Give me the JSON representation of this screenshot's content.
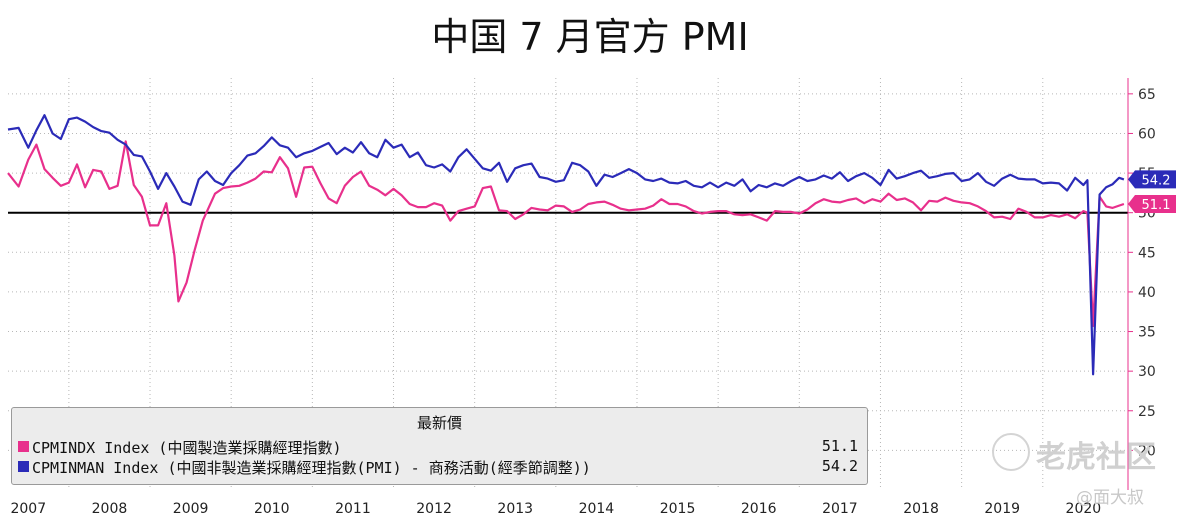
{
  "title": "中国 7 月官方 PMI",
  "watermark": {
    "brand": "老虎社区",
    "handle": "@面大叔"
  },
  "legend": {
    "header": "最新價",
    "items": [
      {
        "label": "CPMINDX Index (中國製造業採購經理指數)",
        "value": "51.1",
        "color": "#e8308c"
      },
      {
        "label": "CPMINMAN Index (中國非製造業採購經理指數(PMI) - 商務活動(經季節調整))",
        "value": "54.2",
        "color": "#2b2bb8"
      }
    ]
  },
  "chart_data": {
    "type": "line",
    "title": "中国 7 月官方 PMI",
    "xlabel": "",
    "ylabel": "",
    "x_range": [
      2006.75,
      2020.55
    ],
    "ylim": [
      15,
      67
    ],
    "y_ticks": [
      20,
      25,
      30,
      35,
      40,
      45,
      50,
      55,
      60,
      65
    ],
    "x_ticks": [
      "2007",
      "2008",
      "2009",
      "2010",
      "2011",
      "2012",
      "2013",
      "2014",
      "2015",
      "2016",
      "2017",
      "2018",
      "2019",
      "2020"
    ],
    "reference_line": 50,
    "grid": true,
    "series": [
      {
        "name": "CPMINMAN Index",
        "color": "#2b2bb8",
        "last_value": "54.2",
        "points": [
          [
            2006.75,
            60.5
          ],
          [
            2006.88,
            60.7
          ],
          [
            2007.0,
            58.2
          ],
          [
            2007.1,
            60.4
          ],
          [
            2007.2,
            62.3
          ],
          [
            2007.3,
            60.0
          ],
          [
            2007.4,
            59.3
          ],
          [
            2007.5,
            61.8
          ],
          [
            2007.6,
            62.0
          ],
          [
            2007.7,
            61.5
          ],
          [
            2007.8,
            60.8
          ],
          [
            2007.9,
            60.3
          ],
          [
            2008.0,
            60.1
          ],
          [
            2008.1,
            59.2
          ],
          [
            2008.2,
            58.6
          ],
          [
            2008.3,
            57.3
          ],
          [
            2008.4,
            57.1
          ],
          [
            2008.5,
            55.2
          ],
          [
            2008.6,
            53.0
          ],
          [
            2008.7,
            55.0
          ],
          [
            2008.8,
            53.3
          ],
          [
            2008.9,
            51.4
          ],
          [
            2009.0,
            51.0
          ],
          [
            2009.1,
            54.2
          ],
          [
            2009.2,
            55.2
          ],
          [
            2009.3,
            54.0
          ],
          [
            2009.4,
            53.5
          ],
          [
            2009.5,
            55.0
          ],
          [
            2009.6,
            56.0
          ],
          [
            2009.7,
            57.2
          ],
          [
            2009.8,
            57.5
          ],
          [
            2009.9,
            58.4
          ],
          [
            2010.0,
            59.5
          ],
          [
            2010.1,
            58.5
          ],
          [
            2010.2,
            58.2
          ],
          [
            2010.3,
            57.0
          ],
          [
            2010.4,
            57.5
          ],
          [
            2010.5,
            57.8
          ],
          [
            2010.6,
            58.3
          ],
          [
            2010.7,
            58.8
          ],
          [
            2010.8,
            57.4
          ],
          [
            2010.9,
            58.2
          ],
          [
            2011.0,
            57.6
          ],
          [
            2011.1,
            58.9
          ],
          [
            2011.2,
            57.5
          ],
          [
            2011.3,
            57.0
          ],
          [
            2011.4,
            59.2
          ],
          [
            2011.5,
            58.2
          ],
          [
            2011.6,
            58.6
          ],
          [
            2011.7,
            57.0
          ],
          [
            2011.8,
            57.6
          ],
          [
            2011.9,
            56.0
          ],
          [
            2012.0,
            55.7
          ],
          [
            2012.1,
            56.1
          ],
          [
            2012.2,
            55.2
          ],
          [
            2012.3,
            57.0
          ],
          [
            2012.4,
            58.0
          ],
          [
            2012.5,
            56.8
          ],
          [
            2012.6,
            55.6
          ],
          [
            2012.7,
            55.3
          ],
          [
            2012.8,
            56.3
          ],
          [
            2012.9,
            53.9
          ],
          [
            2013.0,
            55.6
          ],
          [
            2013.1,
            56.0
          ],
          [
            2013.2,
            56.2
          ],
          [
            2013.3,
            54.5
          ],
          [
            2013.4,
            54.3
          ],
          [
            2013.5,
            53.9
          ],
          [
            2013.6,
            54.1
          ],
          [
            2013.7,
            56.3
          ],
          [
            2013.8,
            56.0
          ],
          [
            2013.9,
            55.2
          ],
          [
            2014.0,
            53.4
          ],
          [
            2014.1,
            54.8
          ],
          [
            2014.2,
            54.5
          ],
          [
            2014.3,
            55.0
          ],
          [
            2014.4,
            55.5
          ],
          [
            2014.5,
            55.0
          ],
          [
            2014.6,
            54.2
          ],
          [
            2014.7,
            54.0
          ],
          [
            2014.8,
            54.3
          ],
          [
            2014.9,
            53.8
          ],
          [
            2015.0,
            53.7
          ],
          [
            2015.1,
            54.0
          ],
          [
            2015.2,
            53.4
          ],
          [
            2015.3,
            53.2
          ],
          [
            2015.4,
            53.8
          ],
          [
            2015.5,
            53.2
          ],
          [
            2015.6,
            53.8
          ],
          [
            2015.7,
            53.4
          ],
          [
            2015.8,
            54.2
          ],
          [
            2015.9,
            52.7
          ],
          [
            2016.0,
            53.5
          ],
          [
            2016.1,
            53.2
          ],
          [
            2016.2,
            53.7
          ],
          [
            2016.3,
            53.4
          ],
          [
            2016.4,
            54.0
          ],
          [
            2016.5,
            54.5
          ],
          [
            2016.6,
            54.0
          ],
          [
            2016.7,
            54.2
          ],
          [
            2016.8,
            54.7
          ],
          [
            2016.9,
            54.3
          ],
          [
            2017.0,
            55.1
          ],
          [
            2017.1,
            54.0
          ],
          [
            2017.2,
            54.6
          ],
          [
            2017.3,
            55.0
          ],
          [
            2017.4,
            54.4
          ],
          [
            2017.5,
            53.5
          ],
          [
            2017.6,
            55.4
          ],
          [
            2017.7,
            54.3
          ],
          [
            2017.8,
            54.6
          ],
          [
            2017.9,
            55.0
          ],
          [
            2018.0,
            55.3
          ],
          [
            2018.1,
            54.4
          ],
          [
            2018.2,
            54.6
          ],
          [
            2018.3,
            54.9
          ],
          [
            2018.4,
            55.0
          ],
          [
            2018.5,
            54.0
          ],
          [
            2018.6,
            54.2
          ],
          [
            2018.7,
            55.0
          ],
          [
            2018.8,
            53.9
          ],
          [
            2018.9,
            53.4
          ],
          [
            2019.0,
            54.3
          ],
          [
            2019.1,
            54.8
          ],
          [
            2019.2,
            54.3
          ],
          [
            2019.3,
            54.2
          ],
          [
            2019.4,
            54.2
          ],
          [
            2019.5,
            53.7
          ],
          [
            2019.6,
            53.8
          ],
          [
            2019.7,
            53.7
          ],
          [
            2019.8,
            52.8
          ],
          [
            2019.9,
            54.4
          ],
          [
            2020.0,
            53.5
          ],
          [
            2020.05,
            54.1
          ],
          [
            2020.12,
            29.6
          ],
          [
            2020.2,
            52.3
          ],
          [
            2020.28,
            53.2
          ],
          [
            2020.36,
            53.6
          ],
          [
            2020.44,
            54.4
          ],
          [
            2020.5,
            54.2
          ]
        ]
      },
      {
        "name": "CPMINDX Index",
        "color": "#e8308c",
        "last_value": "51.1",
        "points": [
          [
            2006.75,
            55.0
          ],
          [
            2006.88,
            53.3
          ],
          [
            2007.0,
            56.7
          ],
          [
            2007.1,
            58.6
          ],
          [
            2007.2,
            55.5
          ],
          [
            2007.3,
            54.4
          ],
          [
            2007.4,
            53.4
          ],
          [
            2007.5,
            53.8
          ],
          [
            2007.6,
            56.1
          ],
          [
            2007.7,
            53.2
          ],
          [
            2007.8,
            55.4
          ],
          [
            2007.9,
            55.2
          ],
          [
            2008.0,
            53.0
          ],
          [
            2008.1,
            53.4
          ],
          [
            2008.2,
            59.0
          ],
          [
            2008.3,
            53.5
          ],
          [
            2008.4,
            52.0
          ],
          [
            2008.5,
            48.4
          ],
          [
            2008.6,
            48.4
          ],
          [
            2008.7,
            51.2
          ],
          [
            2008.8,
            44.6
          ],
          [
            2008.85,
            38.8
          ],
          [
            2008.95,
            41.2
          ],
          [
            2009.05,
            45.3
          ],
          [
            2009.15,
            49.0
          ],
          [
            2009.3,
            52.4
          ],
          [
            2009.4,
            53.1
          ],
          [
            2009.5,
            53.3
          ],
          [
            2009.6,
            53.4
          ],
          [
            2009.7,
            53.8
          ],
          [
            2009.8,
            54.3
          ],
          [
            2009.9,
            55.2
          ],
          [
            2010.0,
            55.1
          ],
          [
            2010.1,
            57.0
          ],
          [
            2010.2,
            55.6
          ],
          [
            2010.3,
            52.0
          ],
          [
            2010.4,
            55.7
          ],
          [
            2010.5,
            55.8
          ],
          [
            2010.6,
            53.7
          ],
          [
            2010.7,
            51.8
          ],
          [
            2010.8,
            51.2
          ],
          [
            2010.9,
            53.4
          ],
          [
            2011.0,
            54.5
          ],
          [
            2011.1,
            55.2
          ],
          [
            2011.2,
            53.4
          ],
          [
            2011.3,
            52.9
          ],
          [
            2011.4,
            52.2
          ],
          [
            2011.5,
            53.0
          ],
          [
            2011.6,
            52.2
          ],
          [
            2011.7,
            51.1
          ],
          [
            2011.8,
            50.7
          ],
          [
            2011.9,
            50.7
          ],
          [
            2012.0,
            51.2
          ],
          [
            2012.1,
            50.9
          ],
          [
            2012.2,
            49.0
          ],
          [
            2012.3,
            50.2
          ],
          [
            2012.4,
            50.5
          ],
          [
            2012.5,
            50.8
          ],
          [
            2012.6,
            53.1
          ],
          [
            2012.7,
            53.3
          ],
          [
            2012.8,
            50.3
          ],
          [
            2012.9,
            50.2
          ],
          [
            2013.0,
            49.2
          ],
          [
            2013.1,
            49.8
          ],
          [
            2013.2,
            50.6
          ],
          [
            2013.3,
            50.4
          ],
          [
            2013.4,
            50.3
          ],
          [
            2013.5,
            50.9
          ],
          [
            2013.6,
            50.8
          ],
          [
            2013.7,
            50.1
          ],
          [
            2013.8,
            50.4
          ],
          [
            2013.9,
            51.1
          ],
          [
            2014.0,
            51.3
          ],
          [
            2014.1,
            51.4
          ],
          [
            2014.2,
            51.0
          ],
          [
            2014.3,
            50.5
          ],
          [
            2014.4,
            50.3
          ],
          [
            2014.5,
            50.4
          ],
          [
            2014.6,
            50.5
          ],
          [
            2014.7,
            50.9
          ],
          [
            2014.8,
            51.7
          ],
          [
            2014.9,
            51.1
          ],
          [
            2015.0,
            51.1
          ],
          [
            2015.1,
            50.8
          ],
          [
            2015.2,
            50.2
          ],
          [
            2015.3,
            49.9
          ],
          [
            2015.4,
            50.1
          ],
          [
            2015.5,
            50.2
          ],
          [
            2015.6,
            50.2
          ],
          [
            2015.7,
            49.8
          ],
          [
            2015.8,
            49.7
          ],
          [
            2015.9,
            49.8
          ],
          [
            2016.0,
            49.4
          ],
          [
            2016.1,
            49.0
          ],
          [
            2016.2,
            50.2
          ],
          [
            2016.3,
            50.1
          ],
          [
            2016.4,
            50.1
          ],
          [
            2016.5,
            49.9
          ],
          [
            2016.6,
            50.4
          ],
          [
            2016.7,
            51.2
          ],
          [
            2016.8,
            51.7
          ],
          [
            2016.9,
            51.4
          ],
          [
            2017.0,
            51.3
          ],
          [
            2017.1,
            51.6
          ],
          [
            2017.2,
            51.8
          ],
          [
            2017.3,
            51.2
          ],
          [
            2017.4,
            51.7
          ],
          [
            2017.5,
            51.4
          ],
          [
            2017.6,
            52.4
          ],
          [
            2017.7,
            51.6
          ],
          [
            2017.8,
            51.8
          ],
          [
            2017.9,
            51.3
          ],
          [
            2018.0,
            50.3
          ],
          [
            2018.1,
            51.5
          ],
          [
            2018.2,
            51.4
          ],
          [
            2018.3,
            51.9
          ],
          [
            2018.4,
            51.5
          ],
          [
            2018.5,
            51.3
          ],
          [
            2018.6,
            51.2
          ],
          [
            2018.7,
            50.8
          ],
          [
            2018.8,
            50.2
          ],
          [
            2018.9,
            49.4
          ],
          [
            2019.0,
            49.5
          ],
          [
            2019.1,
            49.2
          ],
          [
            2019.2,
            50.5
          ],
          [
            2019.3,
            50.1
          ],
          [
            2019.4,
            49.4
          ],
          [
            2019.5,
            49.4
          ],
          [
            2019.6,
            49.7
          ],
          [
            2019.7,
            49.5
          ],
          [
            2019.8,
            49.8
          ],
          [
            2019.9,
            49.3
          ],
          [
            2020.0,
            50.2
          ],
          [
            2020.05,
            50.0
          ],
          [
            2020.12,
            35.7
          ],
          [
            2020.2,
            52.0
          ],
          [
            2020.28,
            50.8
          ],
          [
            2020.36,
            50.6
          ],
          [
            2020.44,
            50.9
          ],
          [
            2020.5,
            51.1
          ]
        ]
      }
    ]
  }
}
